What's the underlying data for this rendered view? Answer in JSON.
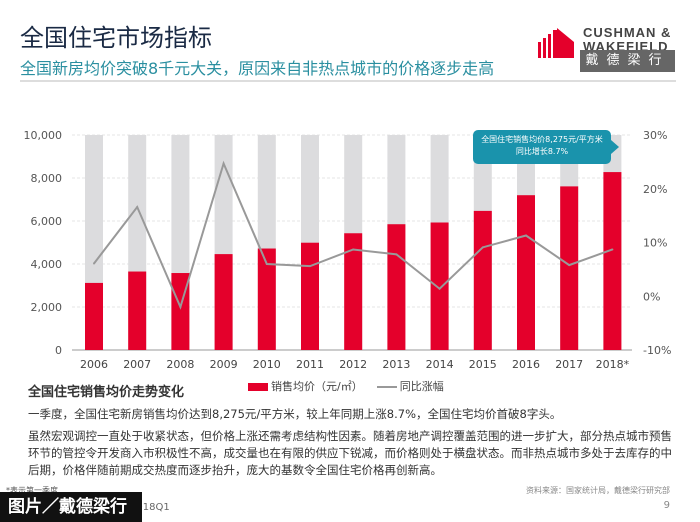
{
  "header": {
    "title": "全国住宅市场指标",
    "subtitle": "全国新房均价突破8千元大关，原因来自非热点城市的价格逐步走高"
  },
  "logo": {
    "line1": "CUSHMAN &",
    "line2": "WAKEFIELD",
    "cn": "戴德梁行",
    "brand_color": "#e4002b"
  },
  "chart_data": {
    "type": "bar+line",
    "categories": [
      "2006",
      "2007",
      "2008",
      "2009",
      "2010",
      "2011",
      "2012",
      "2013",
      "2014",
      "2015",
      "2016",
      "2017",
      "2018*"
    ],
    "series": [
      {
        "name": "销售均价（元/㎡）",
        "type": "bar",
        "axis": "left",
        "color": "#e4002b",
        "values": [
          3120,
          3650,
          3580,
          4460,
          4720,
          4990,
          5430,
          5850,
          5930,
          6470,
          7200,
          7610,
          8275
        ]
      },
      {
        "name": "同比涨幅",
        "type": "line",
        "axis": "right",
        "color": "#999999",
        "values": [
          6.1,
          16.6,
          -2.0,
          24.7,
          6.0,
          5.6,
          8.7,
          7.8,
          1.4,
          9.1,
          11.3,
          5.8,
          8.7
        ]
      }
    ],
    "ylim": [
      0,
      10000
    ],
    "y_ticks": [
      "0",
      "2,000",
      "4,000",
      "6,000",
      "8,000",
      "10,000"
    ],
    "y2lim": [
      -10,
      30
    ],
    "y2_ticks": [
      "-10%",
      "0%",
      "10%",
      "20%",
      "30%"
    ],
    "background_bar_color": "#dcdcde",
    "grid": true,
    "annotation": {
      "line1": "全国住宅销售均价8,275元/平方米",
      "line2": "同比增长8.7%"
    },
    "legend": "bottom"
  },
  "chart_heading": "全国住宅销售均价走势变化",
  "paragraphs": [
    "一季度，全国住宅新房销售均价达到8,275元/平方米，较上年同期上涨8.7%，全国住宅均价首破8字头。",
    "虽然宏观调控一直处于收紧状态，但价格上涨还需考虑结构性因素。随着房地产调控覆盖范围的进一步扩大，部分热点城市预售环节的管控令开发商入市积极性不高，成交量也在有限的供应下锐减，而价格则处于横盘状态。而非热点城市多处于去库存的中后期，价格伴随前期成交热度而逐步抬升，庞大的基数令全国住宅价格再创新高。"
  ],
  "note": "*表示第一季度",
  "source": "资料来源：国家统计局，戴德梁行研究部",
  "footer": "2018Q1",
  "page_number": "9",
  "watermark": "图片／戴德梁行"
}
